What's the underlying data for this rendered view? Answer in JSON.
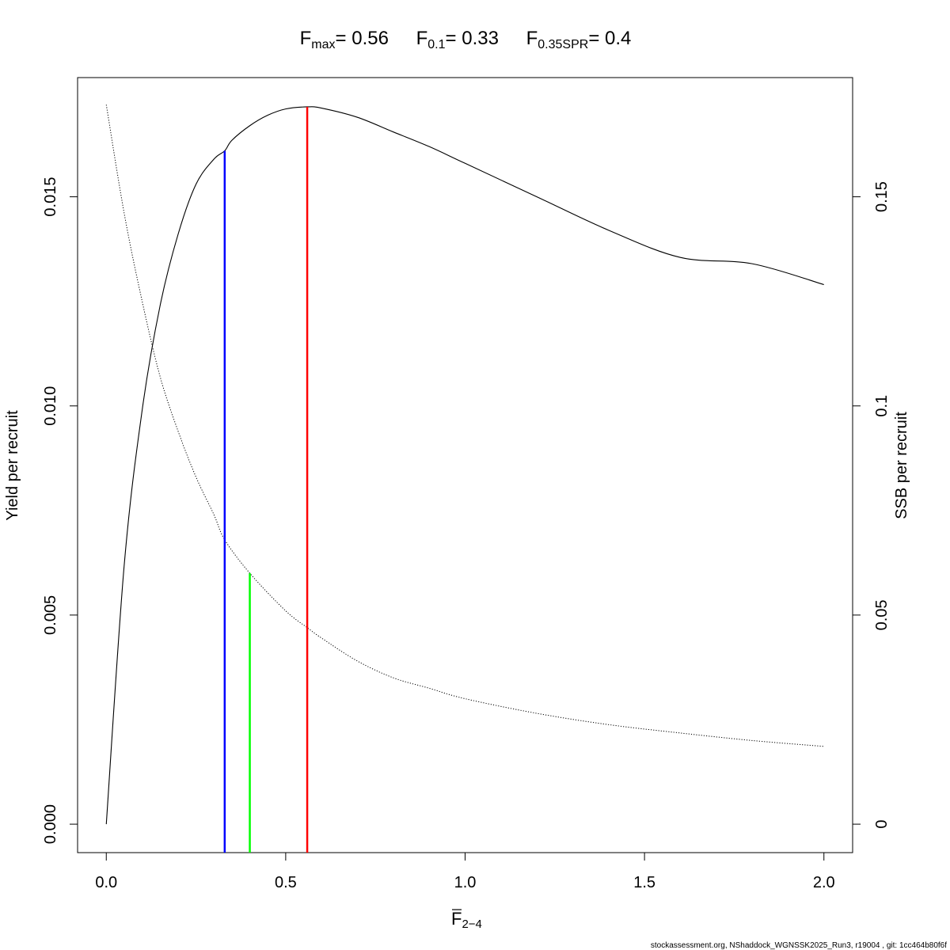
{
  "title": {
    "fmax_label": "F",
    "fmax_sub": "max",
    "fmax_value": "= 0.56",
    "f01_label": "F",
    "f01_sub": "0.1",
    "f01_value": "= 0.33",
    "fspr_label": "F",
    "fspr_sub": "0.35SPR",
    "fspr_value": "= 0.4"
  },
  "footer": "stockassessment.org, NShaddock_WGNSSK2025_Run3, r19004 , git: 1cc464b80f6f",
  "chart_data": {
    "type": "line",
    "xlabel": "F",
    "xlabel_sub": "2−4",
    "ylabel_left": "Yield per recruit",
    "ylabel_right": "SSB per recruit",
    "xlim": [
      -0.08,
      2.08
    ],
    "ylim_left": [
      -0.00068,
      0.01785
    ],
    "ylim_right": [
      -0.0068,
      0.1785
    ],
    "x_ticks": [
      0,
      0.5,
      1,
      1.5,
      2
    ],
    "x_tick_labels": [
      "0.0",
      "0.5",
      "1.0",
      "1.5",
      "2.0"
    ],
    "y_left_ticks": [
      0,
      0.005,
      0.01,
      0.015
    ],
    "y_left_tick_labels": [
      "0.000",
      "0.005",
      "0.010",
      "0.015"
    ],
    "y_right_ticks": [
      0,
      0.05,
      0.1,
      0.15
    ],
    "y_right_tick_labels": [
      "0",
      "0.05",
      "0.1",
      "0.15"
    ],
    "series": [
      {
        "axis": "left",
        "style": "solid",
        "x": [
          0,
          0.05,
          0.1,
          0.15,
          0.2,
          0.25,
          0.3,
          0.33,
          0.35,
          0.4,
          0.45,
          0.5,
          0.56,
          0.6,
          0.7,
          0.8,
          0.9,
          1.0,
          1.2,
          1.4,
          1.6,
          1.8,
          2.0
        ],
        "y": [
          0,
          0.0062,
          0.0099,
          0.0124,
          0.0141,
          0.0153,
          0.0159,
          0.0161,
          0.01635,
          0.0167,
          0.01695,
          0.0171,
          0.01715,
          0.01712,
          0.0169,
          0.01655,
          0.0162,
          0.0158,
          0.015,
          0.0142,
          0.01355,
          0.0134,
          0.0129
        ]
      },
      {
        "axis": "right",
        "style": "dotted",
        "x": [
          0,
          0.05,
          0.1,
          0.15,
          0.2,
          0.25,
          0.3,
          0.33,
          0.4,
          0.5,
          0.56,
          0.6,
          0.7,
          0.8,
          0.9,
          1.0,
          1.2,
          1.4,
          1.6,
          1.8,
          2.0
        ],
        "y": [
          0.172,
          0.146,
          0.125,
          0.107,
          0.094,
          0.083,
          0.074,
          0.068,
          0.06,
          0.051,
          0.047,
          0.0445,
          0.039,
          0.035,
          0.0325,
          0.03,
          0.0265,
          0.0238,
          0.0218,
          0.02,
          0.0186
        ]
      }
    ],
    "reference_lines": [
      {
        "name": "F0.1",
        "x": 0.33,
        "y_top": 0.0161,
        "color": "#0000ff"
      },
      {
        "name": "F0.35SPR",
        "x": 0.4,
        "y_top": 0.006,
        "color": "#00ff00"
      },
      {
        "name": "Fmax",
        "x": 0.56,
        "y_top": 0.01715,
        "color": "#ff0000"
      }
    ]
  }
}
